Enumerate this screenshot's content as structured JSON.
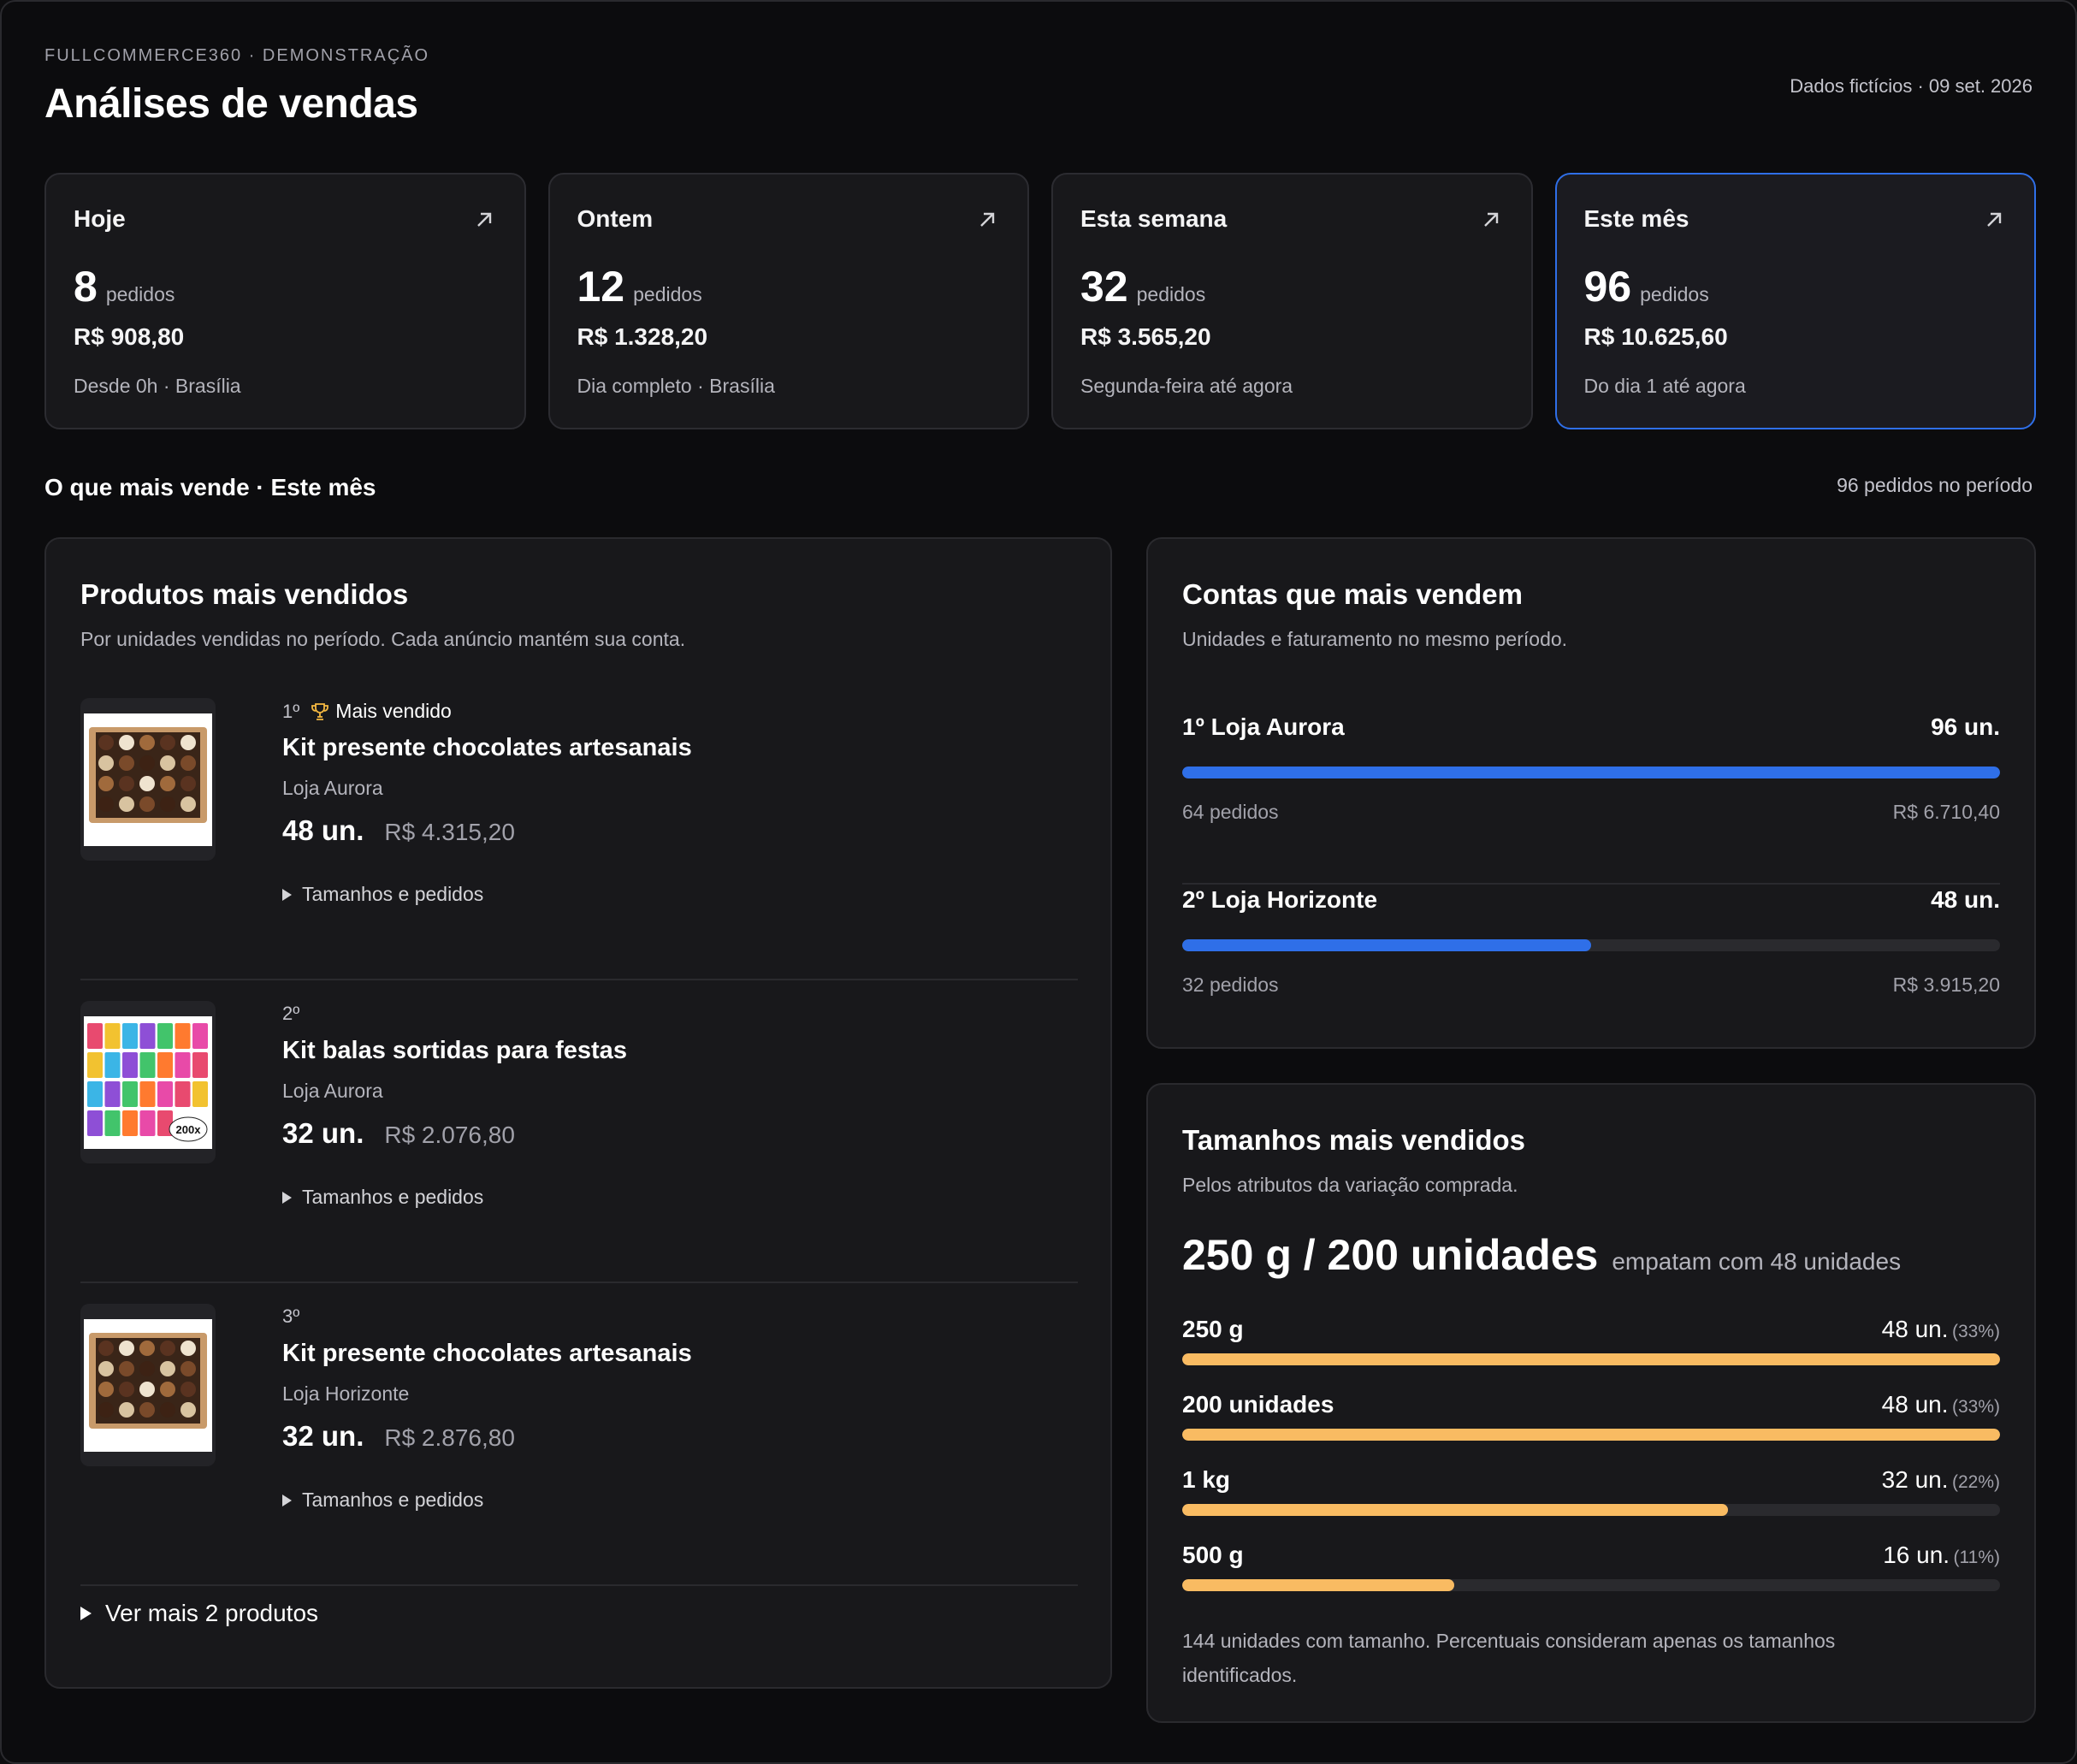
{
  "header": {
    "eyebrow": "FULLCOMMERCE360 · DEMONSTRAÇÃO",
    "title": "Análises de vendas",
    "meta": "Dados fictícios · 09 set. 2026"
  },
  "periods": [
    {
      "name": "Hoje",
      "count": "8",
      "count_unit": "pedidos",
      "revenue": "R$ 908,80",
      "note": "Desde 0h · Brasília",
      "active": false
    },
    {
      "name": "Ontem",
      "count": "12",
      "count_unit": "pedidos",
      "revenue": "R$ 1.328,20",
      "note": "Dia completo · Brasília",
      "active": false
    },
    {
      "name": "Esta semana",
      "count": "32",
      "count_unit": "pedidos",
      "revenue": "R$ 3.565,20",
      "note": "Segunda-feira até agora",
      "active": false
    },
    {
      "name": "Este mês",
      "count": "96",
      "count_unit": "pedidos",
      "revenue": "R$ 10.625,60",
      "note": "Do dia 1 até agora",
      "active": true
    }
  ],
  "section": {
    "title": "O que mais vende · Este mês",
    "meta": "96 pedidos no período"
  },
  "products_panel": {
    "title": "Produtos mais vendidos",
    "subtitle": "Por unidades vendidas no período. Cada anúncio mantém sua conta.",
    "items": [
      {
        "rank": "1º",
        "badge": "Mais vendido",
        "name": "Kit presente chocolates artesanais",
        "store": "Loja Aurora",
        "units": "48 un.",
        "revenue": "R$ 4.315,20",
        "toggle": "Tamanhos e pedidos",
        "image": "chocolate-box"
      },
      {
        "rank": "2º",
        "badge": "",
        "name": "Kit balas sortidas para festas",
        "store": "Loja Aurora",
        "units": "32 un.",
        "revenue": "R$ 2.076,80",
        "toggle": "Tamanhos e pedidos",
        "image": "candy-kit",
        "image_text": "200x"
      },
      {
        "rank": "3º",
        "badge": "",
        "name": "Kit presente chocolates artesanais",
        "store": "Loja Horizonte",
        "units": "32 un.",
        "revenue": "R$ 2.876,80",
        "toggle": "Tamanhos e pedidos",
        "image": "chocolate-box"
      }
    ],
    "see_more": "Ver mais 2 produtos"
  },
  "accounts_panel": {
    "title": "Contas que mais vendem",
    "subtitle": "Unidades e faturamento no mesmo período.",
    "accounts": [
      {
        "label": "1º Loja Aurora",
        "units": "96 un.",
        "share": 1.0,
        "orders": "64 pedidos",
        "revenue": "R$ 6.710,40"
      },
      {
        "label": "2º Loja Horizonte",
        "units": "48 un.",
        "share": 0.5,
        "orders": "32 pedidos",
        "revenue": "R$ 3.915,20"
      }
    ],
    "bar_color": "#2f6fe8"
  },
  "sizes_panel": {
    "title": "Tamanhos mais vendidos",
    "subtitle": "Pelos atributos da variação comprada.",
    "leader": "250 g / 200 unidades",
    "leader_note": "empatam com 48 unidades",
    "sizes": [
      {
        "label": "250 g",
        "units": "48 un.",
        "pct": "(33%)",
        "share": 1.0
      },
      {
        "label": "200 unidades",
        "units": "48 un.",
        "pct": "(33%)",
        "share": 1.0
      },
      {
        "label": "1 kg",
        "units": "32 un.",
        "pct": "(22%)",
        "share": 0.667
      },
      {
        "label": "500 g",
        "units": "16 un.",
        "pct": "(11%)",
        "share": 0.333
      }
    ],
    "note": "144 unidades com tamanho. Percentuais consideram apenas os tamanhos identificados.",
    "bar_color": "#f9bb62"
  },
  "colors": {
    "background": "#0c0c0e",
    "card": "#18181b",
    "active_border": "#2f6fe8"
  }
}
